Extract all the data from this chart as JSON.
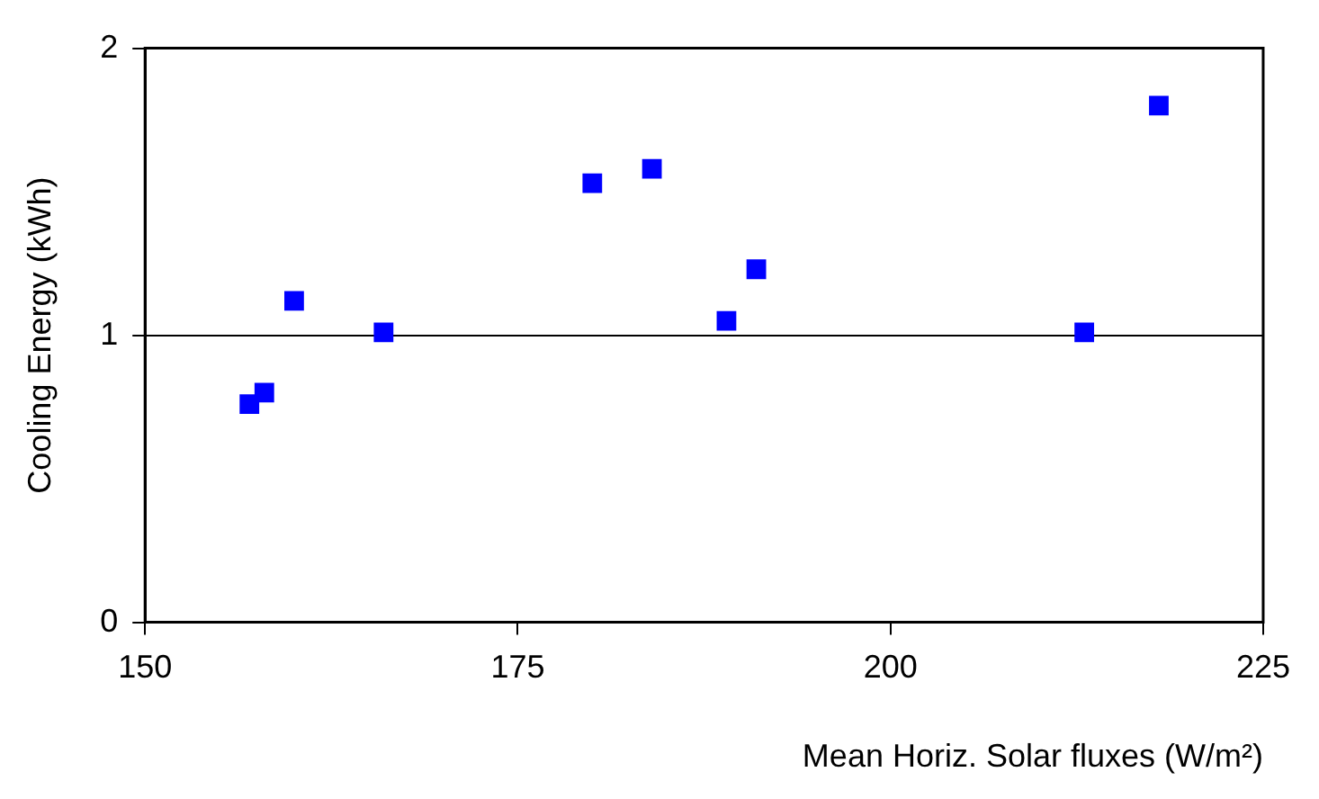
{
  "chart_data": {
    "type": "scatter",
    "xlabel": "Mean Horiz. Solar fluxes (W/m²)",
    "ylabel": "Cooling Energy (kWh)",
    "x": [
      157,
      158,
      160,
      166,
      180,
      184,
      189,
      191,
      213,
      218
    ],
    "series": [
      {
        "color": "#0000ff",
        "values": [
          0.76,
          0.8,
          1.12,
          1.01,
          1.53,
          1.58,
          1.05,
          1.23,
          1.01,
          1.8
        ]
      }
    ],
    "xlim": [
      150,
      225
    ],
    "xticks": [
      150,
      175,
      200,
      225
    ],
    "ylim": [
      0,
      2
    ],
    "yticks": [
      0,
      1,
      2
    ],
    "grid": "y",
    "marker": "square",
    "legend": false
  }
}
